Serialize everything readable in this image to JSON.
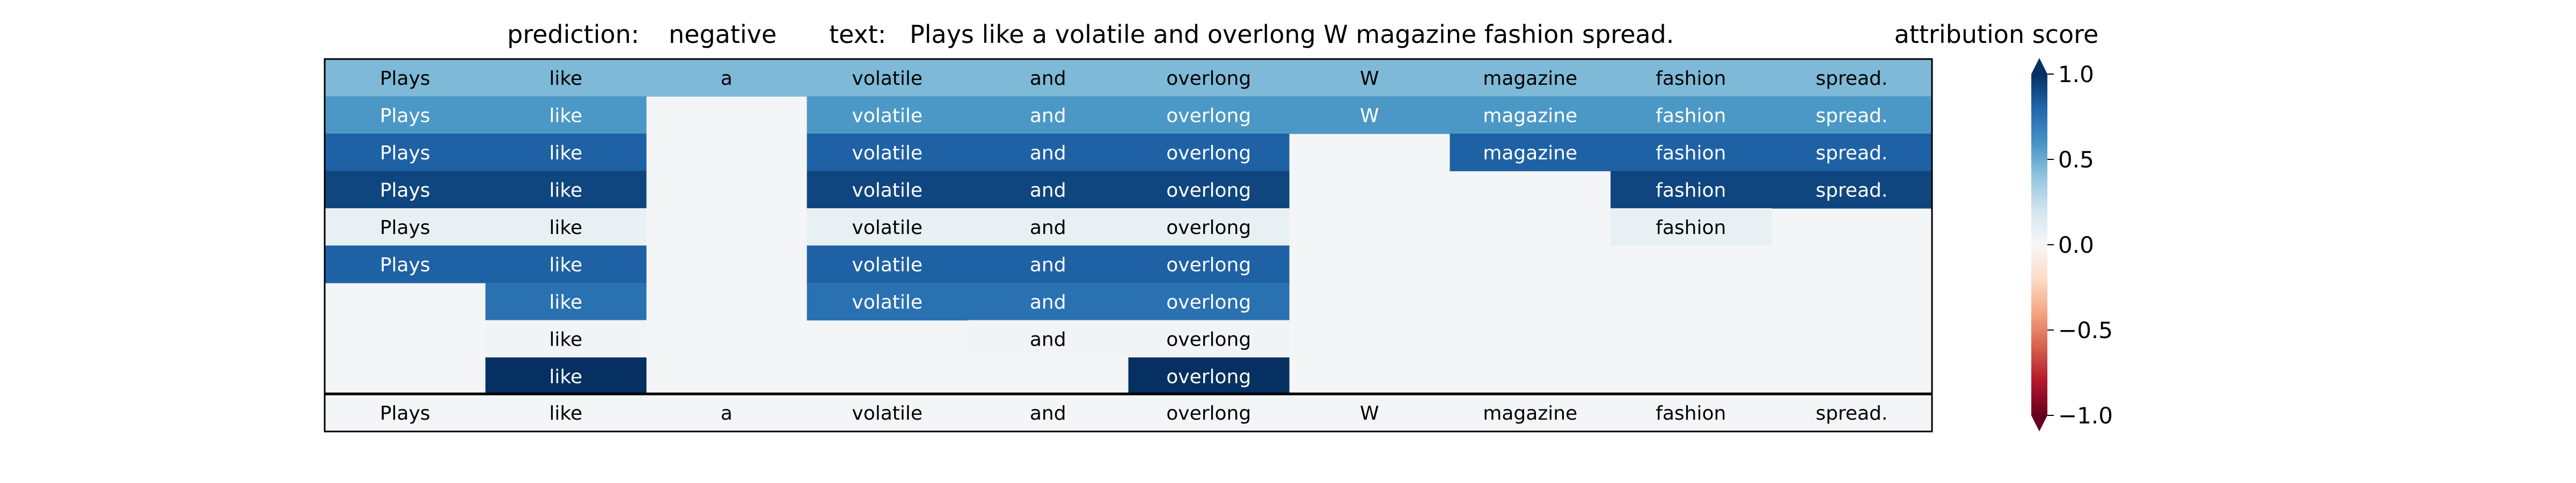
{
  "header": {
    "prediction_label": "prediction:",
    "prediction_value": "negative",
    "text_label": "text:",
    "text_value": "Plays like a volatile and overlong W magazine fashion spread."
  },
  "chart_data": {
    "type": "heatmap",
    "tokens": [
      "Plays",
      "like",
      "a",
      "volatile",
      "and",
      "overlong",
      "W",
      "magazine",
      "fashion",
      "spread."
    ],
    "rows": [
      [
        0.45,
        0.45,
        0.45,
        0.45,
        0.45,
        0.45,
        0.45,
        0.45,
        0.45,
        0.45
      ],
      [
        0.58,
        0.58,
        null,
        0.58,
        0.58,
        0.58,
        0.58,
        0.58,
        0.58,
        0.58
      ],
      [
        0.82,
        0.82,
        null,
        0.82,
        0.82,
        0.82,
        null,
        0.82,
        0.82,
        0.82
      ],
      [
        0.92,
        0.92,
        null,
        0.92,
        0.92,
        0.92,
        null,
        null,
        0.92,
        0.92
      ],
      [
        0.08,
        0.08,
        null,
        0.08,
        0.08,
        0.08,
        null,
        null,
        0.08,
        null
      ],
      [
        0.82,
        0.82,
        null,
        0.82,
        0.82,
        0.82,
        null,
        null,
        null,
        null
      ],
      [
        null,
        0.75,
        null,
        0.75,
        0.75,
        0.75,
        null,
        null,
        null,
        null
      ],
      [
        null,
        0.03,
        null,
        null,
        0.03,
        0.03,
        null,
        null,
        null,
        null
      ],
      [
        null,
        1.0,
        null,
        null,
        null,
        1.0,
        null,
        null,
        null,
        null
      ]
    ],
    "colorbar": {
      "title": "attribution score",
      "range": [
        -1.0,
        1.0
      ],
      "ticks": [
        1.0,
        0.5,
        0.0,
        -0.5,
        -1.0
      ],
      "tick_labels": [
        "1.0",
        "0.5",
        "0.0",
        "−0.5",
        "−1.0"
      ],
      "colormap": "RdBu"
    }
  }
}
